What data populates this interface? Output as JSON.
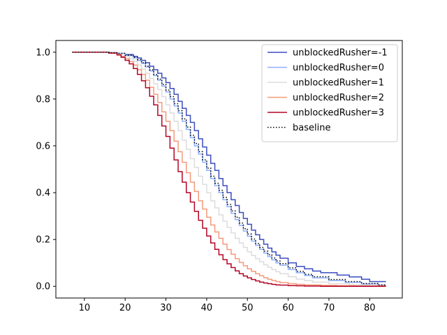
{
  "chart_data": {
    "type": "line",
    "title": "",
    "xlabel": "",
    "ylabel": "",
    "xlim": [
      3,
      88
    ],
    "ylim": [
      -0.05,
      1.05
    ],
    "xticks": [
      10,
      20,
      30,
      40,
      50,
      60,
      70,
      80
    ],
    "yticks": [
      0.0,
      0.2,
      0.4,
      0.6,
      0.8,
      1.0
    ],
    "xtick_labels": [
      "10",
      "20",
      "30",
      "40",
      "50",
      "60",
      "70",
      "80"
    ],
    "ytick_labels": [
      "0.0",
      "0.2",
      "0.4",
      "0.6",
      "0.8",
      "1.0"
    ],
    "grid": false,
    "legend_position": "top-right",
    "step": "post",
    "series": [
      {
        "name": "unblockedRusher=-1",
        "color": "#3b4cc0",
        "dash": "solid",
        "x": [
          7,
          14,
          16,
          18,
          20,
          22,
          23,
          24,
          25,
          26,
          27,
          28,
          29,
          30,
          31,
          32,
          33,
          34,
          35,
          36,
          37,
          38,
          39,
          40,
          41,
          42,
          43,
          44,
          45,
          46,
          47,
          48,
          49,
          50,
          51,
          52,
          53,
          54,
          55,
          56,
          57,
          58,
          60,
          62,
          64,
          66,
          68,
          72,
          75,
          78,
          80,
          84
        ],
        "y": [
          1.0,
          1.0,
          0.998,
          0.995,
          0.99,
          0.982,
          0.975,
          0.965,
          0.955,
          0.94,
          0.925,
          0.91,
          0.89,
          0.87,
          0.845,
          0.82,
          0.79,
          0.76,
          0.73,
          0.7,
          0.665,
          0.63,
          0.595,
          0.56,
          0.525,
          0.495,
          0.46,
          0.43,
          0.4,
          0.37,
          0.345,
          0.315,
          0.29,
          0.265,
          0.24,
          0.22,
          0.2,
          0.18,
          0.163,
          0.147,
          0.133,
          0.12,
          0.1,
          0.085,
          0.075,
          0.065,
          0.058,
          0.048,
          0.04,
          0.03,
          0.02,
          0.02
        ]
      },
      {
        "name": "unblockedRusher=0",
        "color": "#8db0fe",
        "dash": "solid",
        "x": [
          7,
          14,
          16,
          18,
          20,
          22,
          23,
          24,
          25,
          26,
          27,
          28,
          29,
          30,
          31,
          32,
          33,
          34,
          35,
          36,
          37,
          38,
          39,
          40,
          41,
          42,
          43,
          44,
          45,
          46,
          47,
          48,
          49,
          50,
          51,
          52,
          53,
          54,
          55,
          56,
          57,
          58,
          60,
          62,
          64,
          66,
          70,
          74,
          78,
          82,
          84
        ],
        "y": [
          1.0,
          1.0,
          0.998,
          0.995,
          0.985,
          0.975,
          0.965,
          0.952,
          0.937,
          0.92,
          0.9,
          0.88,
          0.855,
          0.83,
          0.8,
          0.77,
          0.74,
          0.705,
          0.67,
          0.635,
          0.6,
          0.565,
          0.53,
          0.495,
          0.46,
          0.43,
          0.4,
          0.37,
          0.34,
          0.312,
          0.285,
          0.26,
          0.236,
          0.214,
          0.193,
          0.175,
          0.158,
          0.142,
          0.127,
          0.113,
          0.1,
          0.09,
          0.072,
          0.058,
          0.046,
          0.036,
          0.025,
          0.017,
          0.01,
          0.005,
          0.005
        ]
      },
      {
        "name": "unblockedRusher=1",
        "color": "#dddcdc",
        "dash": "solid",
        "x": [
          7,
          14,
          16,
          18,
          20,
          21,
          22,
          23,
          24,
          25,
          26,
          27,
          28,
          29,
          30,
          31,
          32,
          33,
          34,
          35,
          36,
          37,
          38,
          39,
          40,
          41,
          42,
          43,
          44,
          45,
          46,
          47,
          48,
          49,
          50,
          51,
          52,
          53,
          54,
          55,
          56,
          57,
          58,
          60,
          62,
          64,
          66,
          70,
          75,
          80,
          84
        ],
        "y": [
          1.0,
          1.0,
          0.997,
          0.992,
          0.982,
          0.972,
          0.96,
          0.945,
          0.928,
          0.91,
          0.888,
          0.865,
          0.84,
          0.81,
          0.775,
          0.74,
          0.705,
          0.665,
          0.625,
          0.585,
          0.545,
          0.508,
          0.47,
          0.435,
          0.4,
          0.365,
          0.335,
          0.305,
          0.278,
          0.252,
          0.228,
          0.205,
          0.185,
          0.166,
          0.148,
          0.132,
          0.118,
          0.105,
          0.092,
          0.081,
          0.071,
          0.062,
          0.054,
          0.041,
          0.031,
          0.024,
          0.018,
          0.011,
          0.006,
          0.003,
          0.003
        ]
      },
      {
        "name": "unblockedRusher=2",
        "color": "#f49a7b",
        "dash": "solid",
        "x": [
          7,
          14,
          16,
          18,
          19,
          20,
          21,
          22,
          23,
          24,
          25,
          26,
          27,
          28,
          29,
          30,
          31,
          32,
          33,
          34,
          35,
          36,
          37,
          38,
          39,
          40,
          41,
          42,
          43,
          44,
          45,
          46,
          47,
          48,
          49,
          50,
          51,
          52,
          53,
          54,
          55,
          56,
          57,
          58,
          60,
          62,
          64,
          68,
          72,
          76,
          84
        ],
        "y": [
          1.0,
          1.0,
          0.997,
          0.99,
          0.982,
          0.972,
          0.96,
          0.945,
          0.925,
          0.905,
          0.88,
          0.85,
          0.82,
          0.785,
          0.745,
          0.705,
          0.665,
          0.62,
          0.575,
          0.53,
          0.485,
          0.445,
          0.405,
          0.365,
          0.33,
          0.295,
          0.262,
          0.232,
          0.205,
          0.18,
          0.157,
          0.137,
          0.118,
          0.102,
          0.088,
          0.075,
          0.064,
          0.054,
          0.045,
          0.037,
          0.03,
          0.025,
          0.02,
          0.016,
          0.011,
          0.008,
          0.006,
          0.004,
          0.003,
          0.002,
          0.002
        ]
      },
      {
        "name": "unblockedRusher=3",
        "color": "#b40426",
        "dash": "solid",
        "x": [
          7,
          14,
          16,
          18,
          19,
          20,
          21,
          22,
          23,
          24,
          25,
          26,
          27,
          28,
          29,
          30,
          31,
          32,
          33,
          34,
          35,
          36,
          37,
          38,
          39,
          40,
          41,
          42,
          43,
          44,
          45,
          46,
          47,
          48,
          49,
          50,
          51,
          52,
          53,
          54,
          55,
          56,
          57,
          58,
          60,
          62,
          64,
          68,
          72,
          76,
          84
        ],
        "y": [
          1.0,
          1.0,
          0.996,
          0.988,
          0.978,
          0.965,
          0.95,
          0.93,
          0.905,
          0.878,
          0.848,
          0.812,
          0.775,
          0.73,
          0.685,
          0.64,
          0.59,
          0.54,
          0.49,
          0.445,
          0.4,
          0.36,
          0.32,
          0.282,
          0.248,
          0.215,
          0.185,
          0.158,
          0.135,
          0.114,
          0.096,
          0.08,
          0.066,
          0.054,
          0.044,
          0.036,
          0.029,
          0.023,
          0.018,
          0.014,
          0.011,
          0.008,
          0.006,
          0.005,
          0.003,
          0.002,
          0.001,
          0.0,
          0.0,
          0.0,
          0.0
        ]
      },
      {
        "name": "baseline",
        "color": "#000000",
        "dash": "dotted",
        "x": [
          7,
          14,
          16,
          18,
          20,
          22,
          23,
          24,
          25,
          26,
          27,
          28,
          29,
          30,
          31,
          32,
          33,
          34,
          35,
          36,
          37,
          38,
          39,
          40,
          41,
          42,
          43,
          44,
          45,
          46,
          47,
          48,
          49,
          50,
          51,
          52,
          53,
          54,
          55,
          56,
          57,
          58,
          60,
          62,
          64,
          66,
          70,
          74,
          78,
          82,
          84
        ],
        "y": [
          1.0,
          1.0,
          0.998,
          0.995,
          0.987,
          0.978,
          0.968,
          0.955,
          0.94,
          0.924,
          0.905,
          0.885,
          0.862,
          0.838,
          0.81,
          0.78,
          0.75,
          0.715,
          0.68,
          0.645,
          0.61,
          0.575,
          0.54,
          0.505,
          0.47,
          0.44,
          0.41,
          0.38,
          0.35,
          0.322,
          0.295,
          0.27,
          0.246,
          0.223,
          0.202,
          0.183,
          0.166,
          0.15,
          0.135,
          0.121,
          0.108,
          0.097,
          0.079,
          0.064,
          0.051,
          0.041,
          0.029,
          0.02,
          0.012,
          0.006,
          0.006
        ]
      }
    ]
  }
}
